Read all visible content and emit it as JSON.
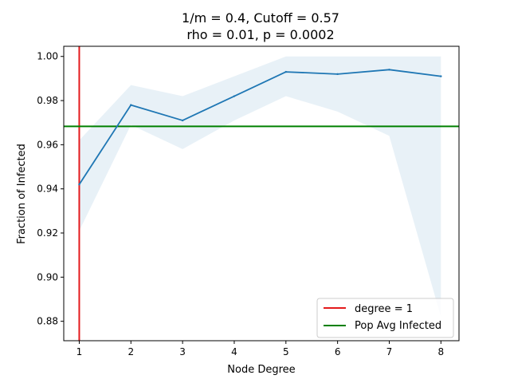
{
  "chart_data": {
    "type": "line",
    "title_lines": [
      "1/m = 0.4, Cutoff = 0.57",
      "rho = 0.01, p = 0.0002"
    ],
    "xlabel": "Node Degree",
    "ylabel": "Fraction of Infected",
    "xlim": [
      0.7,
      8.35
    ],
    "ylim": [
      0.8712,
      1.0046
    ],
    "x_ticks": [
      1,
      2,
      3,
      4,
      5,
      6,
      7,
      8
    ],
    "x_tick_labels": [
      "1",
      "2",
      "3",
      "4",
      "5",
      "6",
      "7",
      "8"
    ],
    "y_ticks": [
      0.88,
      0.9,
      0.92,
      0.94,
      0.96,
      0.98,
      1.0
    ],
    "y_tick_labels": [
      "0.88",
      "0.90",
      "0.92",
      "0.94",
      "0.96",
      "0.98",
      "1.00"
    ],
    "x": [
      1,
      2,
      3,
      4,
      5,
      6,
      7,
      8
    ],
    "series": [
      {
        "values": [
          0.942,
          0.978,
          0.971,
          0.982,
          0.993,
          0.992,
          0.994,
          0.991
        ],
        "band_upper": [
          0.962,
          0.987,
          0.982,
          0.991,
          1.0,
          1.0,
          1.0,
          1.0
        ],
        "band_lower": [
          0.921,
          0.969,
          0.958,
          0.971,
          0.982,
          0.975,
          0.964,
          0.882
        ],
        "color": "#1f77b4",
        "band_color": "#1f77b4"
      }
    ],
    "reference_lines": [
      {
        "orientation": "vertical",
        "value": 1,
        "color": "#e41a1c",
        "name": "degree = 1"
      },
      {
        "orientation": "horizontal",
        "value": 0.9683,
        "color": "#008000",
        "name": "Pop Avg Infected"
      }
    ],
    "legend_placement": "lower-right",
    "grid": false
  }
}
